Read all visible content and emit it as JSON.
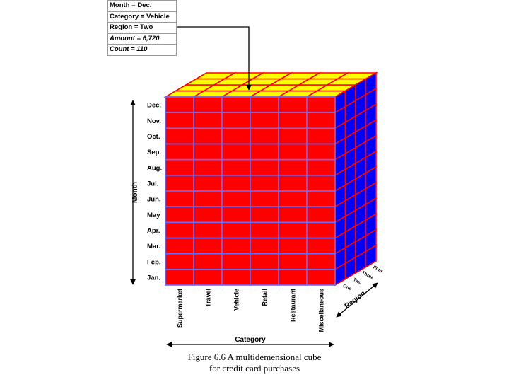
{
  "info_box": [
    {
      "text": "Month = Dec.",
      "italic": false
    },
    {
      "text": "Category = Vehicle",
      "italic": false
    },
    {
      "text": "Region = Two",
      "italic": false
    },
    {
      "text": "Amount = 6,720",
      "italic": true
    },
    {
      "text": "Count = 110",
      "italic": true
    }
  ],
  "months": [
    "Dec.",
    "Nov.",
    "Oct.",
    "Sep.",
    "Aug.",
    "Jul.",
    "Jun.",
    "May",
    "Apr.",
    "Mar.",
    "Feb.",
    "Jan."
  ],
  "categories": [
    "Supermarket",
    "Travel",
    "Vehicle",
    "Retail",
    "Restaurant",
    "Miscellaneous"
  ],
  "regions": [
    "One",
    "Two",
    "Three",
    "Four"
  ],
  "axis_labels": {
    "month": "Month",
    "category": "Category",
    "region": "Region"
  },
  "caption": [
    "Figure 6.6 A multidemensional cube",
    "for credit card purchases"
  ],
  "colors": {
    "front": "#ff0000",
    "top": "#ffff00",
    "side": "#0000ff",
    "grid_on_red": "#6a6aff",
    "grid_on_blue": "#ff0000",
    "grid_on_yellow": "#ff0000"
  }
}
